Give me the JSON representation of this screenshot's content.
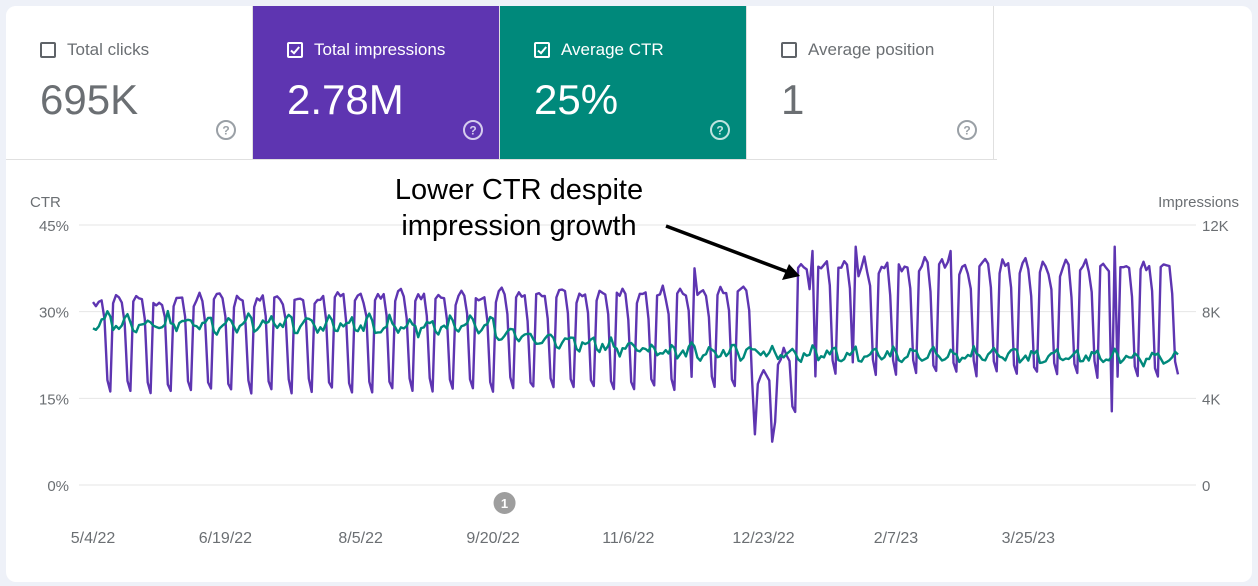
{
  "metrics": [
    {
      "label": "Total clicks",
      "value": "695K",
      "checked": false,
      "style": "white"
    },
    {
      "label": "Total impressions",
      "value": "2.78M",
      "checked": true,
      "style": "purple"
    },
    {
      "label": "Average CTR",
      "value": "25%",
      "checked": true,
      "style": "teal"
    },
    {
      "label": "Average position",
      "value": "1",
      "checked": false,
      "style": "white"
    }
  ],
  "annotation": {
    "line1": "Lower CTR despite",
    "line2": "impression growth"
  },
  "colors": {
    "impressions": "#5e35b1",
    "ctr": "#00897b",
    "grid": "#e6e6e6",
    "axis_text": "#6b6f73",
    "marker": "#9e9e9e"
  },
  "chart_data": {
    "type": "line",
    "left_axis": {
      "label": "CTR",
      "ticks": [
        "45%",
        "30%",
        "15%",
        "0%"
      ],
      "range": [
        0,
        45
      ]
    },
    "right_axis": {
      "label": "Impressions",
      "ticks": [
        "12K",
        "8K",
        "4K",
        "0"
      ],
      "range": [
        0,
        12000
      ]
    },
    "x_ticks": [
      "5/4/22",
      "6/19/22",
      "8/5/22",
      "9/20/22",
      "11/6/22",
      "12/23/22",
      "2/7/23",
      "3/25/23"
    ],
    "x_tick_days": [
      0,
      46,
      93,
      139,
      186,
      233,
      279,
      325
    ],
    "total_days": 377,
    "event_marker": {
      "label": "1",
      "day": 143
    },
    "series": [
      {
        "name": "Impressions",
        "axis": "right",
        "weekday_pattern": [
          8300,
          8500,
          8600,
          8400,
          7500,
          4700,
          4300
        ],
        "segments": [
          {
            "from_day": 0,
            "to_day": 230,
            "scale_start": 1.0,
            "scale_end": 1.05
          },
          {
            "from_day": 230,
            "to_day": 245,
            "scale_start": 0.55,
            "scale_end": 0.8
          },
          {
            "from_day": 245,
            "to_day": 377,
            "scale_start": 1.2,
            "scale_end": 1.18
          }
        ],
        "peak_days": [
          {
            "day": 209,
            "value": 10000
          },
          {
            "day": 250,
            "value": 10800
          },
          {
            "day": 265,
            "value": 11000
          },
          {
            "day": 298,
            "value": 10800
          },
          {
            "day": 355,
            "value": 11000
          }
        ],
        "dip_days": [
          {
            "day": 236,
            "value": 2000
          },
          {
            "day": 354,
            "value": 3400
          }
        ]
      },
      {
        "name": "CTR",
        "axis": "left",
        "weekday_pattern": [
          27.5,
          27.0,
          27.8,
          28.0,
          28.6,
          29.4,
          28.9
        ],
        "segments": [
          {
            "from_day": 0,
            "to_day": 140,
            "scale_start": 1.0,
            "scale_end": 0.97
          },
          {
            "from_day": 140,
            "to_day": 200,
            "scale_start": 0.92,
            "scale_end": 0.82
          },
          {
            "from_day": 200,
            "to_day": 377,
            "scale_start": 0.82,
            "scale_end": 0.78
          }
        ]
      }
    ]
  }
}
